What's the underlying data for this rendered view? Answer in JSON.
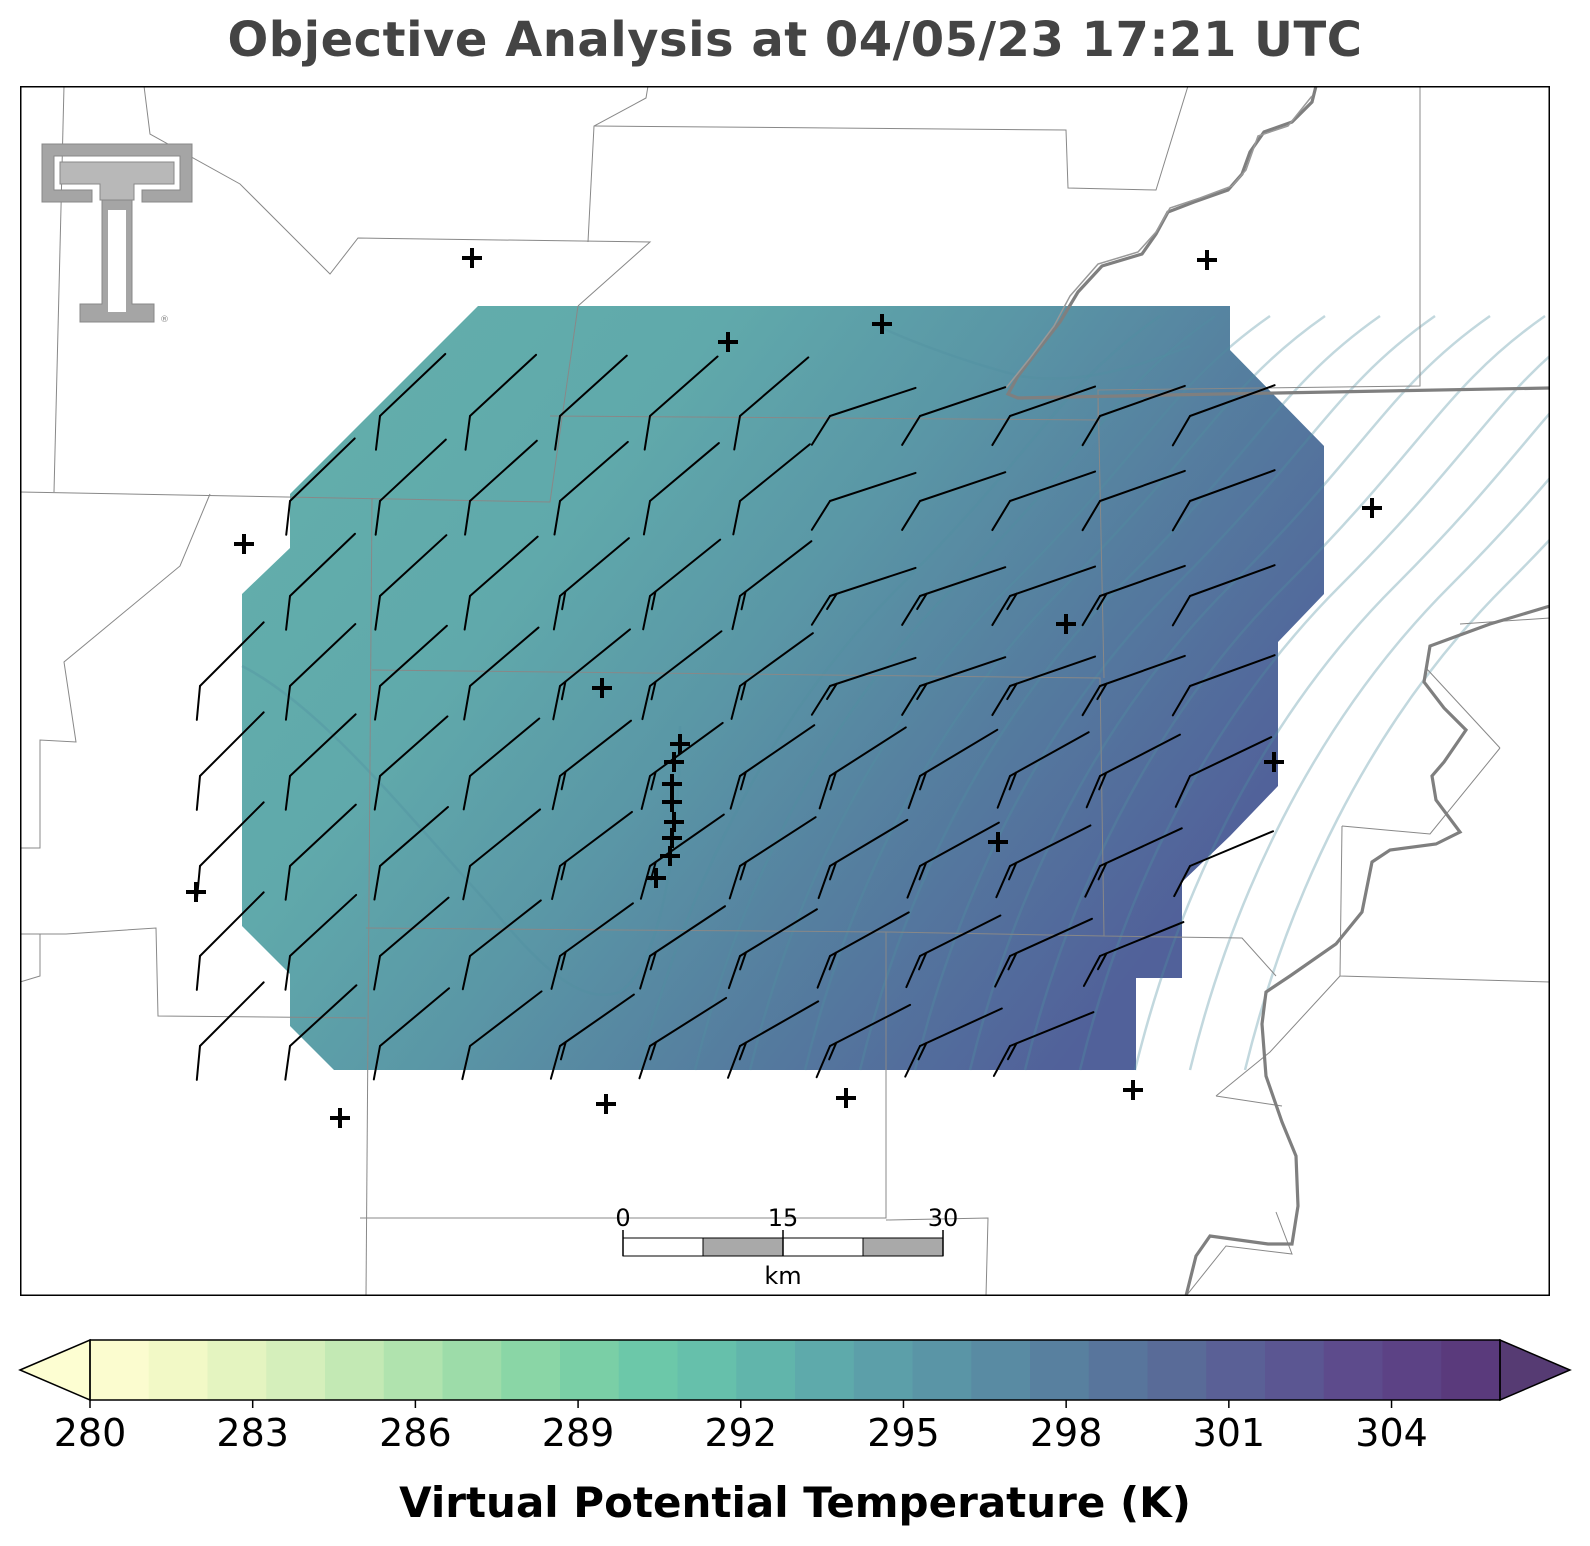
{
  "title": "Objective Analysis at 04/05/23 17:21 UTC",
  "colorbar": {
    "label": "Virtual Potential Temperature (K)",
    "ticks": [
      "280",
      "283",
      "286",
      "289",
      "292",
      "295",
      "298",
      "301",
      "304"
    ],
    "min": 280,
    "max": 306,
    "extend": "both",
    "colormap": [
      "#fbfccf",
      "#f2f9c6",
      "#e4f4c0",
      "#d5efbb",
      "#c3e9b4",
      "#b0e3ae",
      "#9ddca9",
      "#8ad6a6",
      "#7acfa6",
      "#6cc8a9",
      "#66c0ab",
      "#61b5ab",
      "#5eaaab",
      "#5c9fa9",
      "#5a95a6",
      "#598ba3",
      "#58809f",
      "#58759c",
      "#596b98",
      "#5a6096",
      "#5b5692",
      "#5d4b8c",
      "#5c4285",
      "#5a3a7c"
    ],
    "under_color": "#fdfed2",
    "over_color": "#563b73"
  },
  "scalebar": {
    "ticks": [
      "0",
      "15",
      "30"
    ],
    "unit": "km"
  },
  "logo": "texas-tech-double-t-logo",
  "colors": {
    "frame": "#000000",
    "county_lines": "#888888",
    "state_line": "#777777",
    "wind_barbs": "#000000",
    "station_markers": "#000000"
  },
  "analysis_field": {
    "variable": "Virtual Potential Temperature",
    "unit": "K",
    "range_shown": [
      291,
      301
    ],
    "gradient": "warmer toward the southeast, coolest (about 291 K) along a band from the west to the south-central part of the domain"
  },
  "wind_field": {
    "units": "kt",
    "direction_note": "southwesterly in the west, westerly in the north-east, stronger barbs with half-flags east of the center"
  }
}
